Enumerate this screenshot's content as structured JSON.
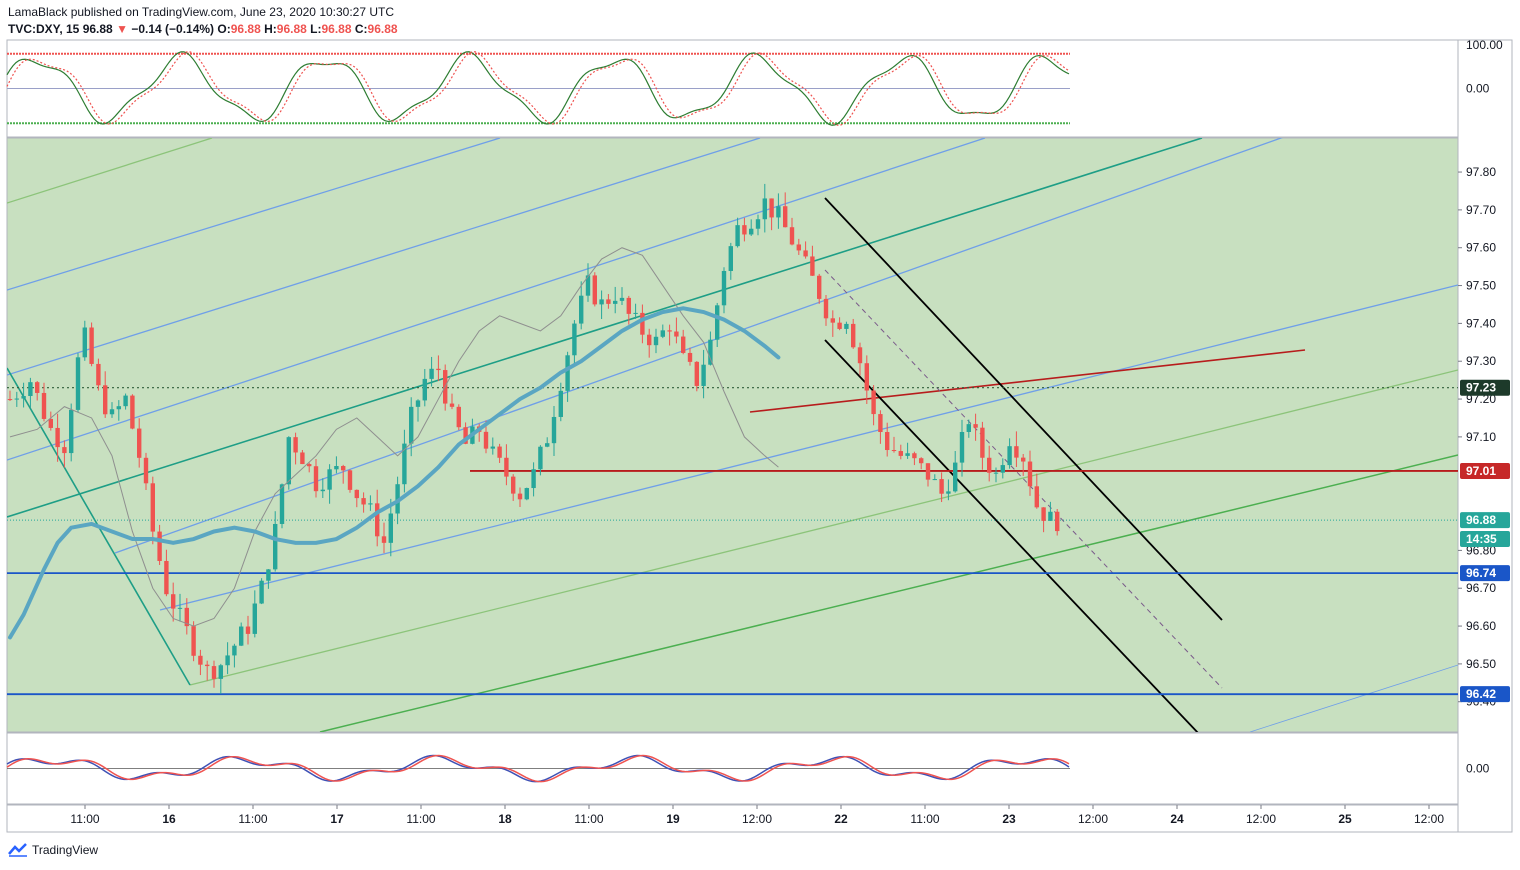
{
  "header": {
    "publisher": "LamaBlack published on TradingView.com, June 23, 2020 10:30:27 UTC",
    "symbol": "TVC:DXY, 15",
    "last": "96.88",
    "arrow": "▼",
    "change": "−0.14 (−0.14%)",
    "o_label": "O:",
    "o_value": "96.88",
    "h_label": "H:",
    "h_value": "96.88",
    "l_label": "L:",
    "l_value": "96.88",
    "c_label": "C:",
    "c_value": "96.88"
  },
  "footer": {
    "brand": "TradingView",
    "logo_icon": "tradingview-logo-icon"
  },
  "colors": {
    "up": "#26a69a",
    "down": "#ef5350",
    "plot_bg": "#c8e0c0",
    "ma_thick": "#5aa6c2",
    "ma_thin": "#8f8f8f",
    "support": "#1a56c8",
    "resistance": "#b71c1c",
    "channel": "#000000",
    "fork_dark": "#1e9e86",
    "fork_blue": "#6f9fe8",
    "fork_light": "#8cc47a",
    "fork_green": "#4caf50"
  },
  "chart_data": [
    {
      "type": "line",
      "name": "stoch-rsi-oscillator",
      "y_ticks": [
        "100.00",
        "0.00"
      ],
      "ylim": [
        -100,
        100
      ],
      "levels": [
        80,
        -80
      ]
    },
    {
      "type": "candlestick",
      "symbol": "TVC:DXY",
      "interval": "15",
      "ylim": [
        96.32,
        97.89
      ],
      "y_ticks": [
        "97.80",
        "97.70",
        "97.60",
        "97.50",
        "97.40",
        "97.30",
        "97.20",
        "97.10",
        "96.80",
        "96.70",
        "96.60",
        "96.50",
        "96.40"
      ],
      "x_ticks": [
        "11:00",
        "16",
        "11:00",
        "17",
        "11:00",
        "18",
        "11:00",
        "19",
        "12:00",
        "22",
        "11:00",
        "23",
        "12:00",
        "24",
        "12:00",
        "25",
        "12:00"
      ],
      "price_labels": [
        {
          "value": 97.23,
          "text": "97.23",
          "kind": "dotted-level"
        },
        {
          "value": 97.01,
          "text": "97.01",
          "kind": "resistance"
        },
        {
          "value": 96.88,
          "text": "96.88",
          "kind": "last-price"
        },
        {
          "value": 96.83,
          "text": "14:35",
          "kind": "countdown"
        },
        {
          "value": 96.74,
          "text": "96.74",
          "kind": "support"
        },
        {
          "value": 96.42,
          "text": "96.42",
          "kind": "support"
        }
      ],
      "close_path": [
        [
          0,
          97.2
        ],
        [
          3,
          97.25
        ],
        [
          6,
          97.12
        ],
        [
          8,
          97.08
        ],
        [
          10,
          97.3
        ],
        [
          11,
          97.36
        ],
        [
          13,
          97.22
        ],
        [
          15,
          97.15
        ],
        [
          17,
          97.2
        ],
        [
          19,
          97.05
        ],
        [
          21,
          96.85
        ],
        [
          23,
          96.7
        ],
        [
          25,
          96.62
        ],
        [
          27,
          96.55
        ],
        [
          29,
          96.48
        ],
        [
          31,
          96.5
        ],
        [
          33,
          96.55
        ],
        [
          35,
          96.6
        ],
        [
          37,
          96.7
        ],
        [
          39,
          96.85
        ],
        [
          41,
          97.1
        ],
        [
          43,
          97.05
        ],
        [
          45,
          96.98
        ],
        [
          47,
          97.0
        ],
        [
          49,
          97.02
        ],
        [
          51,
          96.95
        ],
        [
          53,
          96.9
        ],
        [
          55,
          96.82
        ],
        [
          57,
          96.98
        ],
        [
          59,
          97.15
        ],
        [
          61,
          97.25
        ],
        [
          63,
          97.28
        ],
        [
          65,
          97.15
        ],
        [
          67,
          97.08
        ],
        [
          69,
          97.12
        ],
        [
          71,
          97.05
        ],
        [
          73,
          97.0
        ],
        [
          75,
          96.95
        ],
        [
          77,
          97.0
        ],
        [
          79,
          97.1
        ],
        [
          81,
          97.25
        ],
        [
          83,
          97.4
        ],
        [
          85,
          97.5
        ],
        [
          87,
          97.45
        ],
        [
          89,
          97.48
        ],
        [
          91,
          97.42
        ],
        [
          93,
          97.38
        ],
        [
          95,
          97.35
        ],
        [
          97,
          97.4
        ],
        [
          99,
          97.3
        ],
        [
          101,
          97.25
        ],
        [
          103,
          97.35
        ],
        [
          105,
          97.55
        ],
        [
          107,
          97.65
        ],
        [
          109,
          97.68
        ],
        [
          111,
          97.72
        ],
        [
          113,
          97.68
        ],
        [
          115,
          97.62
        ],
        [
          117,
          97.55
        ],
        [
          119,
          97.48
        ],
        [
          121,
          97.4
        ],
        [
          123,
          97.42
        ],
        [
          125,
          97.3
        ],
        [
          127,
          97.15
        ],
        [
          129,
          97.08
        ],
        [
          131,
          97.05
        ],
        [
          133,
          97.03
        ],
        [
          135,
          97.0
        ],
        [
          137,
          96.95
        ],
        [
          139,
          97.02
        ],
        [
          141,
          97.15
        ],
        [
          143,
          97.05
        ],
        [
          145,
          97.0
        ],
        [
          147,
          97.1
        ],
        [
          149,
          97.05
        ],
        [
          151,
          96.92
        ],
        [
          153,
          96.88
        ],
        [
          154,
          96.88
        ]
      ],
      "ma_slow": [
        [
          0,
          96.57
        ],
        [
          2,
          96.63
        ],
        [
          5,
          96.75
        ],
        [
          7,
          96.82
        ],
        [
          9,
          96.86
        ],
        [
          12,
          96.87
        ],
        [
          15,
          96.85
        ],
        [
          18,
          96.83
        ],
        [
          21,
          96.83
        ],
        [
          24,
          96.82
        ],
        [
          27,
          96.83
        ],
        [
          30,
          96.85
        ],
        [
          33,
          96.86
        ],
        [
          36,
          96.85
        ],
        [
          39,
          96.83
        ],
        [
          42,
          96.82
        ],
        [
          45,
          96.82
        ],
        [
          48,
          96.83
        ],
        [
          51,
          96.86
        ],
        [
          54,
          96.9
        ],
        [
          57,
          96.93
        ],
        [
          60,
          96.97
        ],
        [
          63,
          97.02
        ],
        [
          66,
          97.08
        ],
        [
          69,
          97.12
        ],
        [
          72,
          97.16
        ],
        [
          75,
          97.2
        ],
        [
          78,
          97.23
        ],
        [
          81,
          97.27
        ],
        [
          84,
          97.3
        ],
        [
          87,
          97.34
        ],
        [
          90,
          97.38
        ],
        [
          93,
          97.41
        ],
        [
          96,
          97.43
        ],
        [
          99,
          97.44
        ],
        [
          102,
          97.43
        ],
        [
          105,
          97.41
        ],
        [
          108,
          97.38
        ],
        [
          111,
          97.34
        ],
        [
          113,
          97.31
        ]
      ],
      "ma_fast": [
        [
          0,
          97.1
        ],
        [
          4,
          97.12
        ],
        [
          8,
          97.18
        ],
        [
          12,
          97.15
        ],
        [
          15,
          97.05
        ],
        [
          18,
          96.85
        ],
        [
          21,
          96.7
        ],
        [
          24,
          96.62
        ],
        [
          27,
          96.6
        ],
        [
          30,
          96.62
        ],
        [
          33,
          96.7
        ],
        [
          36,
          96.85
        ],
        [
          39,
          96.95
        ],
        [
          42,
          97.0
        ],
        [
          45,
          97.05
        ],
        [
          48,
          97.12
        ],
        [
          51,
          97.15
        ],
        [
          54,
          97.1
        ],
        [
          57,
          97.05
        ],
        [
          60,
          97.1
        ],
        [
          63,
          97.2
        ],
        [
          66,
          97.3
        ],
        [
          69,
          97.38
        ],
        [
          72,
          97.42
        ],
        [
          75,
          97.4
        ],
        [
          78,
          97.38
        ],
        [
          81,
          97.42
        ],
        [
          84,
          97.5
        ],
        [
          87,
          97.57
        ],
        [
          90,
          97.6
        ],
        [
          93,
          97.58
        ],
        [
          96,
          97.5
        ],
        [
          99,
          97.42
        ],
        [
          102,
          97.35
        ],
        [
          105,
          97.22
        ],
        [
          108,
          97.1
        ],
        [
          111,
          97.05
        ],
        [
          113,
          97.02
        ]
      ]
    },
    {
      "type": "line",
      "name": "momentum-oscillator",
      "y_ticks": [
        "0.00"
      ],
      "ylim": [
        -100,
        100
      ]
    }
  ]
}
